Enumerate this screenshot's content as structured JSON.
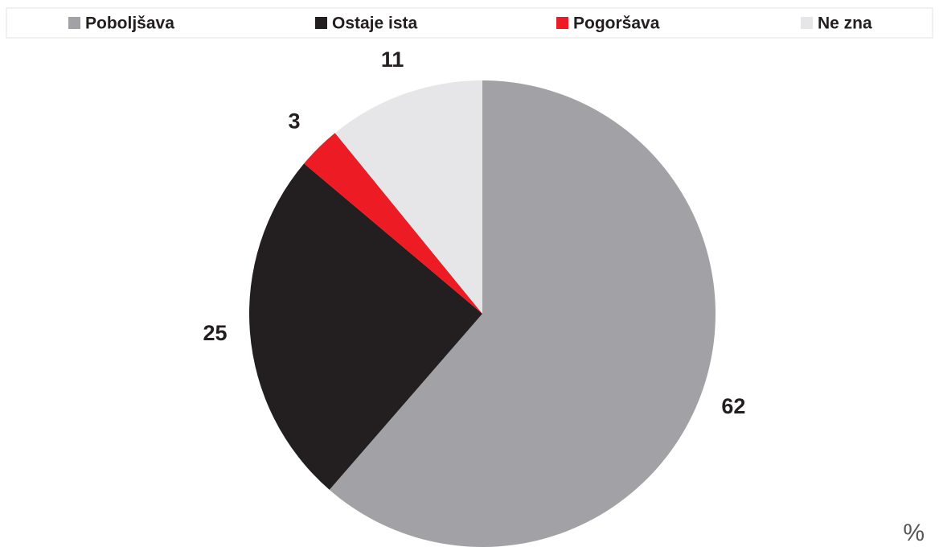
{
  "chart_data": {
    "type": "pie",
    "categories": [
      "Poboljšava",
      "Ostaje ista",
      "Pogoršava",
      "Ne zna"
    ],
    "values": [
      62,
      25,
      3,
      11
    ],
    "colors": [
      "#a2a1a5",
      "#231f20",
      "#ed1c24",
      "#e6e6e8"
    ],
    "unit": "%",
    "legend": "top"
  }
}
